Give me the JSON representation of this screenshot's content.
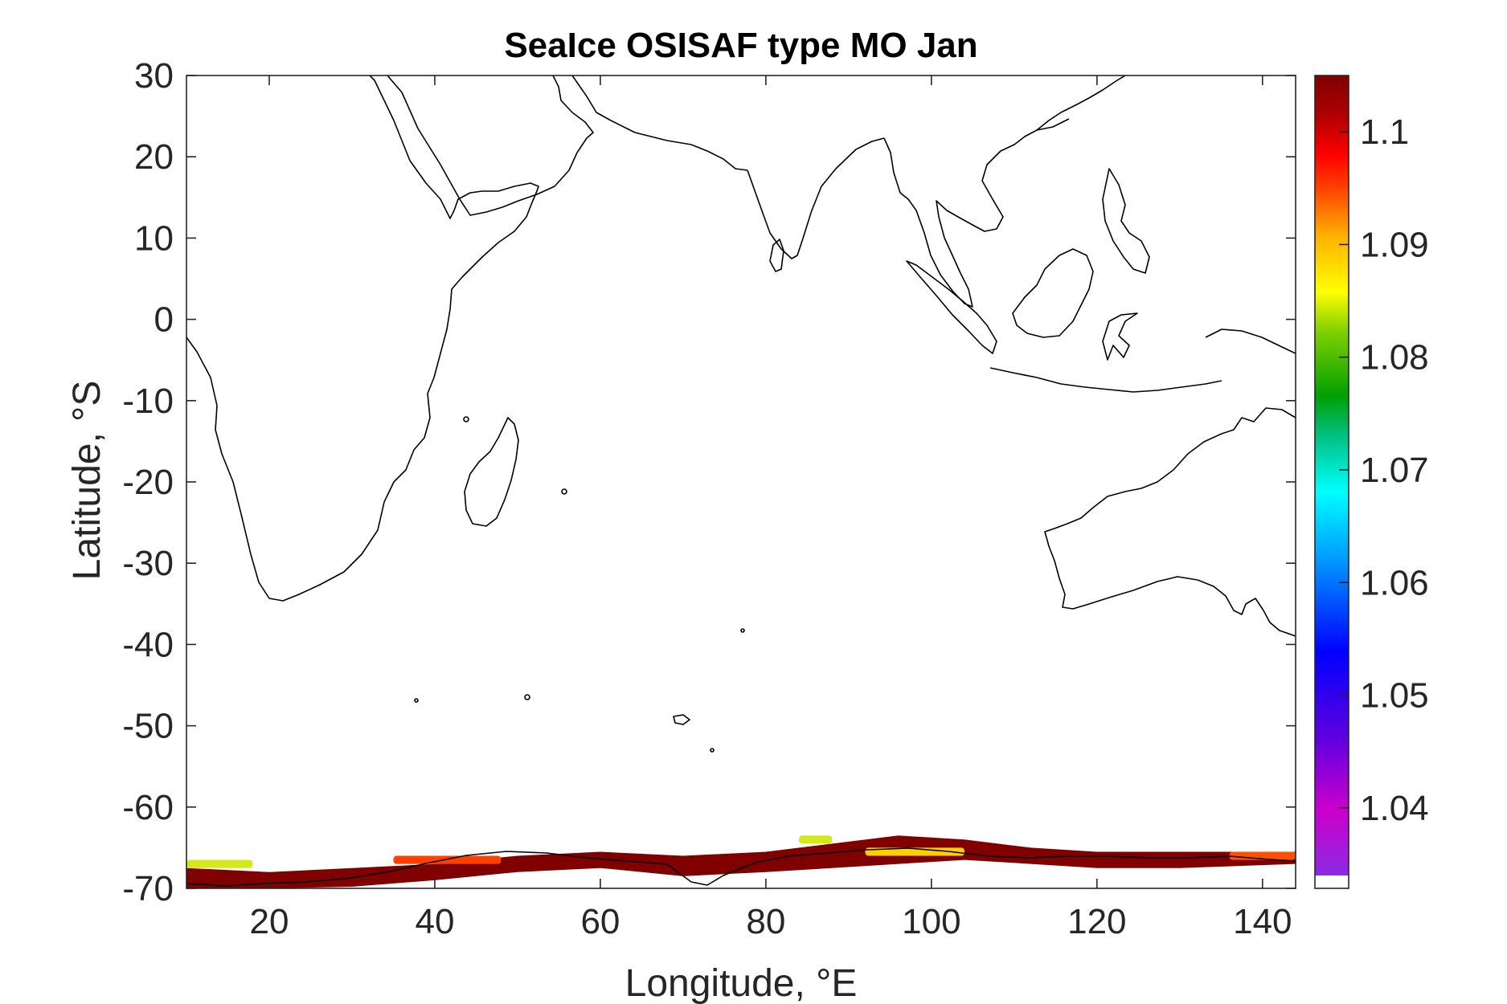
{
  "chart_data": {
    "type": "heatmap",
    "title": "SeaIce OSISAF type MO Jan",
    "xlabel": "Longitude, °E",
    "ylabel": "Latitude, °S",
    "xlim": [
      10,
      144
    ],
    "ylim": [
      -70,
      30
    ],
    "x_ticks": [
      20,
      40,
      60,
      80,
      100,
      120,
      140
    ],
    "y_ticks": [
      30,
      20,
      10,
      0,
      -10,
      -20,
      -30,
      -40,
      -50,
      -60,
      -70
    ],
    "grid": false,
    "colorbar": {
      "range": [
        1.034,
        1.105
      ],
      "ticks": [
        "1.1",
        "1.09",
        "1.08",
        "1.07",
        "1.06",
        "1.05",
        "1.04"
      ],
      "tick_values": [
        1.1,
        1.09,
        1.08,
        1.07,
        1.06,
        1.05,
        1.04
      ],
      "colormap": "jet-like",
      "low_color": "#8a2be2",
      "high_color": "#800000"
    },
    "sea_ice_band": {
      "description_value": "dominant ~1.10 (dark red) along Antarctic coast, lat -63 to -70",
      "upper_edge": [
        [
          10,
          -67.5
        ],
        [
          20,
          -68
        ],
        [
          30,
          -67.5
        ],
        [
          40,
          -67
        ],
        [
          50,
          -66
        ],
        [
          60,
          -65.5
        ],
        [
          70,
          -66
        ],
        [
          80,
          -65.5
        ],
        [
          88,
          -64.5
        ],
        [
          96,
          -63.5
        ],
        [
          104,
          -64
        ],
        [
          112,
          -65
        ],
        [
          120,
          -65.5
        ],
        [
          130,
          -65.5
        ],
        [
          144,
          -65.5
        ]
      ],
      "lower_edge": [
        [
          10,
          -70
        ],
        [
          20,
          -70
        ],
        [
          30,
          -69.8
        ],
        [
          40,
          -69
        ],
        [
          50,
          -68
        ],
        [
          60,
          -67.5
        ],
        [
          70,
          -68.5
        ],
        [
          80,
          -68
        ],
        [
          88,
          -67.5
        ],
        [
          96,
          -67
        ],
        [
          104,
          -66.5
        ],
        [
          112,
          -67
        ],
        [
          120,
          -67.5
        ],
        [
          130,
          -67.5
        ],
        [
          144,
          -67
        ]
      ],
      "secondary_patches": [
        {
          "color": "#d4e81c",
          "lon": [
            10,
            18
          ],
          "lat": [
            -66.5,
            -67.5
          ]
        },
        {
          "color": "#ff4000",
          "lon": [
            35,
            48
          ],
          "lat": [
            -66,
            -67
          ]
        },
        {
          "color": "#d4e81c",
          "lon": [
            84,
            88
          ],
          "lat": [
            -63.5,
            -64.5
          ]
        },
        {
          "color": "#ffd000",
          "lon": [
            92,
            104
          ],
          "lat": [
            -65,
            -66
          ]
        },
        {
          "color": "#ff5000",
          "lon": [
            136,
            144
          ],
          "lat": [
            -65.5,
            -66.5
          ]
        }
      ]
    }
  },
  "colors": {
    "background": "#ffffff",
    "coastline": "#000000",
    "axes": "#262626"
  }
}
